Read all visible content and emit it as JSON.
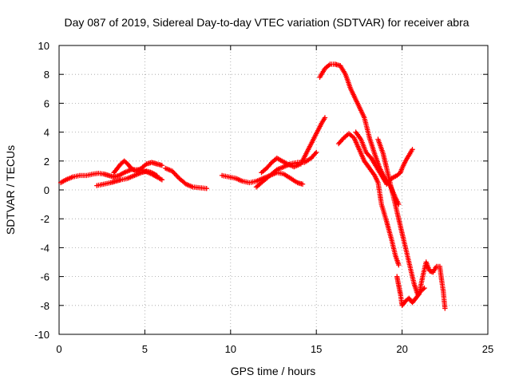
{
  "chart_data": {
    "type": "scatter",
    "title": "Day 087 of 2019, Sidereal Day-to-day VTEC variation (SDTVAR) for receiver abra",
    "xlabel": "GPS time / hours",
    "ylabel": "SDTVAR / TECUs",
    "xlim": [
      0,
      25
    ],
    "ylim": [
      -10,
      10
    ],
    "x_ticks": [
      0,
      5,
      10,
      15,
      20,
      25
    ],
    "y_ticks": [
      -10,
      -8,
      -6,
      -4,
      -2,
      0,
      2,
      4,
      6,
      8,
      10
    ],
    "x_tick_labels": [
      "0",
      "5",
      "10",
      "15",
      "20",
      "25"
    ],
    "y_tick_labels": [
      "-10",
      "-8",
      "-6",
      "-4",
      "-2",
      "0",
      "2",
      "4",
      "6",
      "8",
      "10"
    ],
    "grid": true,
    "marker": "+",
    "color": "#ff0000",
    "series": [
      {
        "points": [
          [
            0.1,
            0.5
          ],
          [
            0.4,
            0.7
          ],
          [
            0.8,
            0.9
          ],
          [
            1.2,
            1.0
          ],
          [
            1.6,
            1.0
          ],
          [
            2.0,
            1.1
          ],
          [
            2.3,
            1.15
          ],
          [
            2.6,
            1.1
          ],
          [
            2.9,
            1.0
          ],
          [
            3.2,
            0.9
          ],
          [
            3.5,
            1.0
          ],
          [
            3.8,
            1.2
          ],
          [
            4.2,
            1.4
          ],
          [
            4.6,
            1.4
          ],
          [
            5.0,
            1.3
          ],
          [
            5.4,
            1.1
          ],
          [
            5.7,
            0.9
          ],
          [
            6.0,
            0.7
          ]
        ]
      },
      {
        "points": [
          [
            2.2,
            0.3
          ],
          [
            2.6,
            0.4
          ],
          [
            3.0,
            0.5
          ],
          [
            3.3,
            0.6
          ],
          [
            3.6,
            0.7
          ],
          [
            4.0,
            0.8
          ],
          [
            4.4,
            1.0
          ],
          [
            4.8,
            1.2
          ],
          [
            5.1,
            1.3
          ],
          [
            5.4,
            1.2
          ],
          [
            5.7,
            1.0
          ]
        ]
      },
      {
        "points": [
          [
            3.2,
            1.2
          ],
          [
            3.4,
            1.5
          ],
          [
            3.6,
            1.8
          ],
          [
            3.8,
            2.0
          ],
          [
            4.0,
            1.8
          ],
          [
            4.2,
            1.5
          ],
          [
            4.5,
            1.3
          ],
          [
            4.8,
            1.5
          ],
          [
            5.1,
            1.8
          ],
          [
            5.4,
            1.9
          ],
          [
            5.7,
            1.8
          ],
          [
            6.0,
            1.7
          ]
        ]
      },
      {
        "points": [
          [
            6.2,
            1.5
          ],
          [
            6.6,
            1.3
          ],
          [
            7.0,
            0.8
          ],
          [
            7.4,
            0.4
          ],
          [
            7.8,
            0.2
          ],
          [
            8.2,
            0.15
          ],
          [
            8.6,
            0.1
          ]
        ]
      },
      {
        "points": [
          [
            9.5,
            1.0
          ],
          [
            9.9,
            0.9
          ],
          [
            10.3,
            0.8
          ],
          [
            10.7,
            0.6
          ],
          [
            11.1,
            0.5
          ],
          [
            11.5,
            0.6
          ],
          [
            11.9,
            0.8
          ],
          [
            12.3,
            1.0
          ],
          [
            12.7,
            1.2
          ],
          [
            13.1,
            1.1
          ],
          [
            13.5,
            0.8
          ],
          [
            13.9,
            0.5
          ],
          [
            14.2,
            0.4
          ]
        ]
      },
      {
        "points": [
          [
            11.5,
            0.2
          ],
          [
            11.9,
            0.6
          ],
          [
            12.3,
            1.0
          ],
          [
            12.7,
            1.4
          ],
          [
            13.1,
            1.6
          ],
          [
            13.5,
            1.8
          ],
          [
            13.9,
            1.9
          ],
          [
            14.3,
            1.9
          ],
          [
            14.7,
            2.2
          ],
          [
            15.0,
            2.6
          ]
        ]
      },
      {
        "points": [
          [
            11.8,
            1.2
          ],
          [
            12.1,
            1.5
          ],
          [
            12.4,
            1.9
          ],
          [
            12.7,
            2.2
          ],
          [
            13.0,
            2.0
          ],
          [
            13.3,
            1.8
          ],
          [
            13.7,
            1.6
          ],
          [
            14.1,
            1.8
          ],
          [
            14.4,
            2.5
          ],
          [
            14.7,
            3.2
          ],
          [
            15.0,
            3.9
          ],
          [
            15.3,
            4.6
          ],
          [
            15.5,
            5.0
          ]
        ]
      },
      {
        "points": [
          [
            15.2,
            7.8
          ],
          [
            15.5,
            8.4
          ],
          [
            15.8,
            8.7
          ],
          [
            16.1,
            8.7
          ],
          [
            16.4,
            8.6
          ],
          [
            16.7,
            8.0
          ],
          [
            17.0,
            7.0
          ],
          [
            17.4,
            6.0
          ],
          [
            17.8,
            5.0
          ],
          [
            18.1,
            3.6
          ],
          [
            18.4,
            2.5
          ],
          [
            18.7,
            1.5
          ],
          [
            19.0,
            0.8
          ],
          [
            19.3,
            0.3
          ],
          [
            19.6,
            -0.5
          ],
          [
            19.8,
            -1.0
          ]
        ]
      },
      {
        "points": [
          [
            16.3,
            3.2
          ],
          [
            16.6,
            3.6
          ],
          [
            16.9,
            3.9
          ],
          [
            17.2,
            3.6
          ],
          [
            17.5,
            2.8
          ],
          [
            17.8,
            2.0
          ],
          [
            18.1,
            1.5
          ],
          [
            18.4,
            1.0
          ],
          [
            18.6,
            0.5
          ],
          [
            18.8,
            -1.0
          ],
          [
            19.1,
            -2.2
          ],
          [
            19.4,
            -3.5
          ],
          [
            19.6,
            -4.5
          ],
          [
            19.8,
            -5.2
          ]
        ]
      },
      {
        "points": [
          [
            17.3,
            4.0
          ],
          [
            17.6,
            3.5
          ],
          [
            17.9,
            2.6
          ],
          [
            18.2,
            2.2
          ],
          [
            18.5,
            1.6
          ],
          [
            18.8,
            1.0
          ],
          [
            19.1,
            0.4
          ],
          [
            19.4,
            0.8
          ],
          [
            19.7,
            1.0
          ],
          [
            19.9,
            1.2
          ],
          [
            20.0,
            1.5
          ],
          [
            20.2,
            2.0
          ],
          [
            20.4,
            2.4
          ],
          [
            20.6,
            2.8
          ]
        ]
      },
      {
        "points": [
          [
            18.6,
            3.5
          ],
          [
            18.9,
            2.5
          ],
          [
            19.1,
            1.5
          ],
          [
            19.3,
            0.5
          ],
          [
            19.5,
            -0.5
          ],
          [
            19.7,
            -1.5
          ],
          [
            19.9,
            -2.5
          ],
          [
            20.1,
            -3.5
          ],
          [
            20.3,
            -4.5
          ],
          [
            20.5,
            -5.5
          ],
          [
            20.7,
            -6.5
          ],
          [
            20.9,
            -7.2
          ],
          [
            21.1,
            -7.0
          ],
          [
            21.3,
            -6.8
          ]
        ]
      },
      {
        "points": [
          [
            19.7,
            -6.0
          ],
          [
            19.8,
            -6.6
          ],
          [
            19.9,
            -7.2
          ],
          [
            20.0,
            -8.0
          ],
          [
            20.2,
            -7.7
          ],
          [
            20.4,
            -7.5
          ],
          [
            20.6,
            -7.8
          ],
          [
            20.8,
            -7.5
          ],
          [
            21.0,
            -7.2
          ],
          [
            21.2,
            -6.0
          ],
          [
            21.4,
            -5.0
          ],
          [
            21.6,
            -5.6
          ],
          [
            21.8,
            -5.7
          ],
          [
            22.0,
            -5.3
          ],
          [
            22.2,
            -5.3
          ],
          [
            22.3,
            -6.2
          ],
          [
            22.4,
            -7.0
          ],
          [
            22.5,
            -8.2
          ]
        ]
      }
    ]
  }
}
